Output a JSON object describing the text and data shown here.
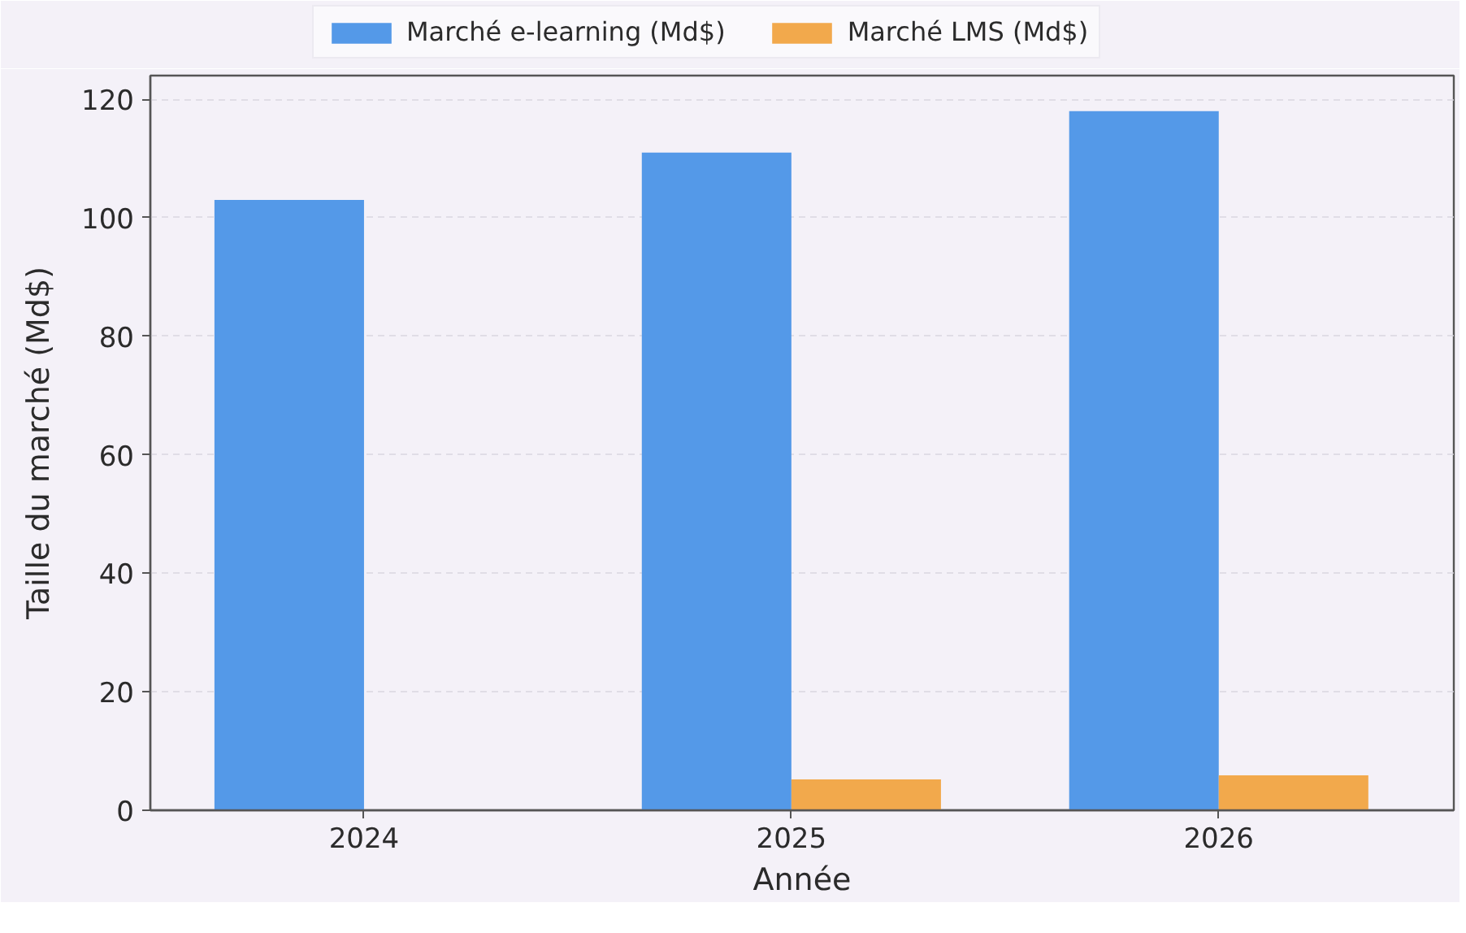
{
  "chart_data": {
    "type": "bar",
    "xlabel": "Année",
    "ylabel": "Taille du marché (Md$)",
    "categories": [
      "2024",
      "2025",
      "2026"
    ],
    "series": [
      {
        "name": "Marché e-learning (Md$)",
        "color": "#5499e8",
        "values": [
          103,
          111,
          118
        ]
      },
      {
        "name": "Marché LMS (Md$)",
        "color": "#f2a94c",
        "values": [
          null,
          5.2,
          5.9
        ]
      }
    ],
    "ylim": [
      0,
      124
    ],
    "yticks": [
      0,
      20,
      40,
      60,
      80,
      100,
      120
    ],
    "grid": "y",
    "legend": "top left"
  }
}
